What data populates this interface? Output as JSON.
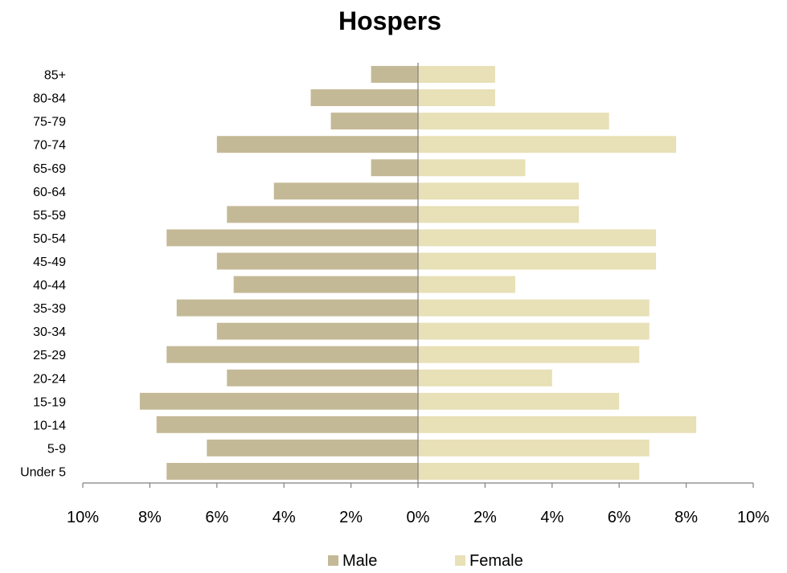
{
  "chart_data": {
    "type": "bar",
    "orientation": "horizontal-population-pyramid",
    "title": "Hospers",
    "categories": [
      "85+",
      "80-84",
      "75-79",
      "70-74",
      "65-69",
      "60-64",
      "55-59",
      "50-54",
      "45-49",
      "40-44",
      "35-39",
      "30-34",
      "25-29",
      "20-24",
      "15-19",
      "10-14",
      "5-9",
      "Under 5"
    ],
    "series": [
      {
        "name": "Male",
        "color": "#c4b996",
        "values": [
          1.4,
          3.2,
          2.6,
          6.0,
          1.4,
          4.3,
          5.7,
          7.5,
          6.0,
          5.5,
          7.2,
          6.0,
          7.5,
          5.7,
          8.3,
          7.8,
          6.3,
          7.5
        ]
      },
      {
        "name": "Female",
        "color": "#e8e0b6",
        "values": [
          2.3,
          2.3,
          5.7,
          7.7,
          3.2,
          4.8,
          4.8,
          7.1,
          7.1,
          2.9,
          6.9,
          6.9,
          6.6,
          4.0,
          6.0,
          8.3,
          6.9,
          6.6
        ]
      }
    ],
    "xlim": [
      -10,
      10
    ],
    "x_ticks": [
      -10,
      -8,
      -6,
      -4,
      -2,
      0,
      2,
      4,
      6,
      8,
      10
    ],
    "x_tick_labels": [
      "10%",
      "8%",
      "6%",
      "4%",
      "2%",
      "0%",
      "2%",
      "4%",
      "6%",
      "8%",
      "10%"
    ],
    "legend_position": "bottom",
    "grid": false
  }
}
